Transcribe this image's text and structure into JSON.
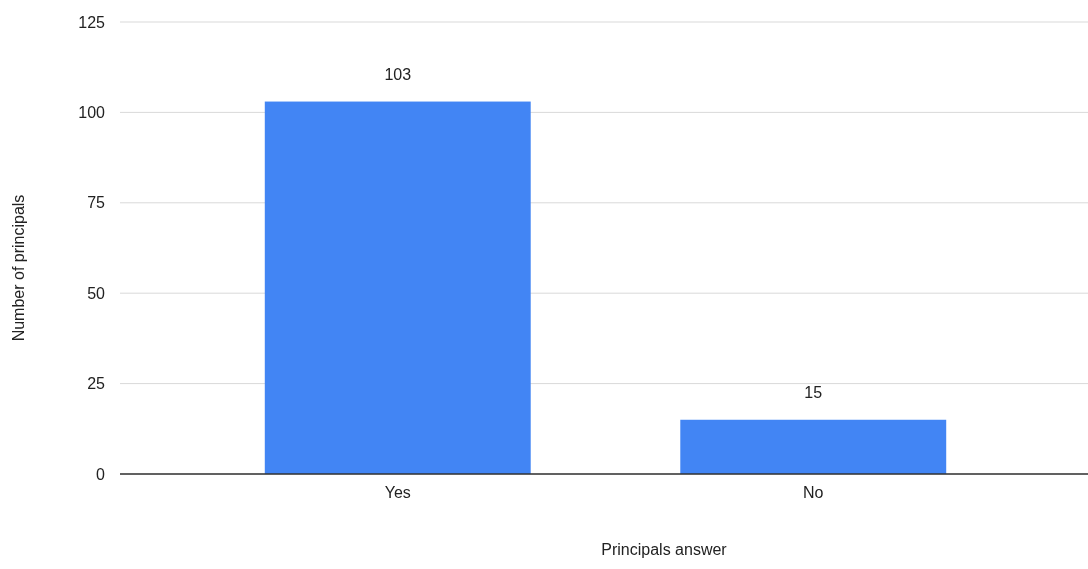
{
  "chart_data": {
    "type": "bar",
    "categories": [
      "Yes",
      "No"
    ],
    "values": [
      103,
      15
    ],
    "color": "#4285f4",
    "xlabel": "Principals answer",
    "ylabel": "Number of principals",
    "ylim": [
      0,
      125
    ],
    "yticks": [
      0,
      25,
      50,
      75,
      100,
      125
    ],
    "grid": "y",
    "data_labels": true
  }
}
